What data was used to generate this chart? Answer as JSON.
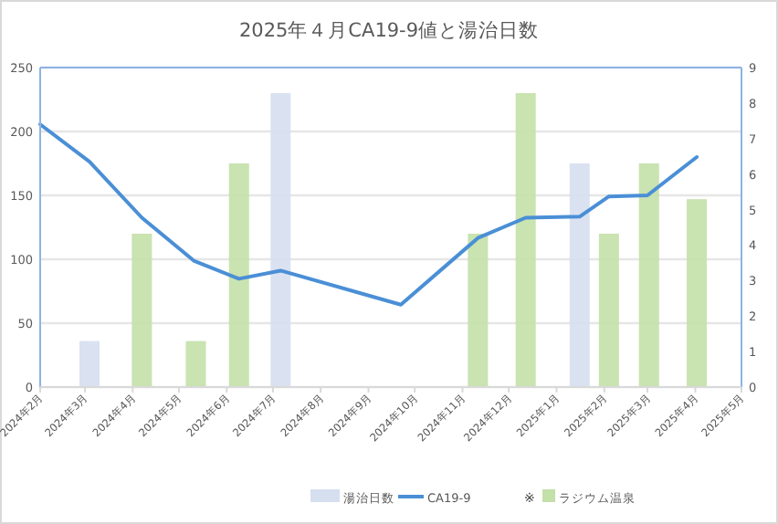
{
  "chart_data": {
    "type": "bar",
    "title": "2025年４月CA19-9値と湯治日数",
    "xlim": [
      "2024-02-01",
      "2025-05-01"
    ],
    "xticks": [
      {
        "value": "2024-02-01",
        "label": "2024年2月"
      },
      {
        "value": "2024-03-01",
        "label": "2024年3月"
      },
      {
        "value": "2024-04-01",
        "label": "2024年4月"
      },
      {
        "value": "2024-05-01",
        "label": "2024年5月"
      },
      {
        "value": "2024-06-01",
        "label": "2024年6月"
      },
      {
        "value": "2024-07-01",
        "label": "2024年7月"
      },
      {
        "value": "2024-08-01",
        "label": "2024年8月"
      },
      {
        "value": "2024-09-01",
        "label": "2024年9月"
      },
      {
        "value": "2024-10-01",
        "label": "2024年10月"
      },
      {
        "value": "2024-11-01",
        "label": "2024年11月"
      },
      {
        "value": "2024-12-01",
        "label": "2024年12月"
      },
      {
        "value": "2025-01-01",
        "label": "2025年1月"
      },
      {
        "value": "2025-02-01",
        "label": "2025年2月"
      },
      {
        "value": "2025-03-01",
        "label": "2025年3月"
      },
      {
        "value": "2025-04-01",
        "label": "2025年4月"
      },
      {
        "value": "2025-05-01",
        "label": "2025年5月"
      }
    ],
    "ylim": [
      0,
      250
    ],
    "yticks": [
      0,
      50,
      100,
      150,
      200,
      250
    ],
    "y2lim": [
      0,
      9
    ],
    "y2ticks": [
      0,
      1,
      2,
      3,
      4,
      5,
      6,
      7,
      8,
      9
    ],
    "grid": "y",
    "legend": "bottom",
    "annotations": [
      "※"
    ],
    "series": [
      {
        "name": "湯治日数",
        "color": "#d6dff0",
        "x": [
          "2024-03-04",
          "2024-07-06",
          "2025-01-16"
        ],
        "values": [
          36,
          230,
          175
        ]
      },
      {
        "name": "CA19-9",
        "type": "line",
        "axis": "y2",
        "color": "#4a8fd6",
        "x": [
          "2024-02-01",
          "2024-03-04",
          "2024-04-07",
          "2024-05-11",
          "2024-06-09",
          "2024-07-06",
          "2024-09-22",
          "2024-11-11",
          "2024-12-12",
          "2025-01-16",
          "2025-02-04",
          "2025-03-01",
          "2025-04-02"
        ],
        "values": [
          7.4,
          6.35,
          4.77,
          3.55,
          3.05,
          3.28,
          2.32,
          4.2,
          4.77,
          4.8,
          5.37,
          5.4,
          6.48
        ]
      },
      {
        "name": "ラジウム温泉",
        "color": "#c3e0a8",
        "x": [
          "2024-04-07",
          "2024-05-12",
          "2024-06-09",
          "2024-11-11",
          "2024-12-12",
          "2025-02-04",
          "2025-03-02",
          "2025-04-02"
        ],
        "values": [
          120,
          36,
          175,
          120,
          230,
          120,
          175,
          147
        ]
      }
    ]
  }
}
